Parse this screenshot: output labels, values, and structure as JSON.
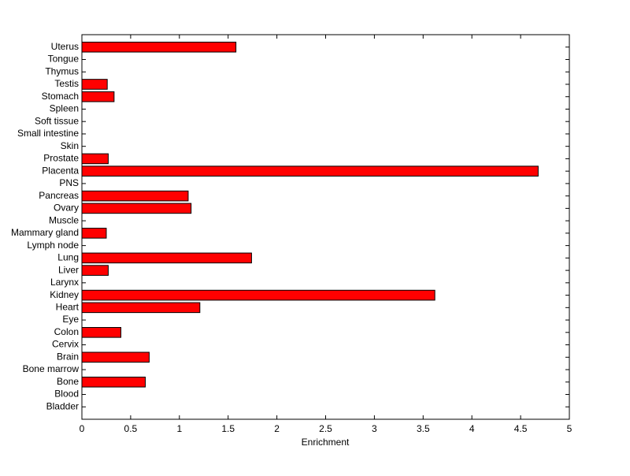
{
  "chart_data": {
    "type": "barh",
    "xlabel": "Enrichment",
    "categories": [
      "Bladder",
      "Blood",
      "Bone",
      "Bone marrow",
      "Brain",
      "Cervix",
      "Colon",
      "Eye",
      "Heart",
      "Kidney",
      "Larynx",
      "Liver",
      "Lung",
      "Lymph node",
      "Mammary gland",
      "Muscle",
      "Ovary",
      "Pancreas",
      "PNS",
      "Placenta",
      "Prostate",
      "Skin",
      "Small intestine",
      "Soft tissue",
      "Spleen",
      "Stomach",
      "Testis",
      "Thymus",
      "Tongue",
      "Uterus"
    ],
    "values": [
      0,
      0,
      0.65,
      0,
      0.69,
      0,
      0.4,
      0,
      1.21,
      3.62,
      0,
      0.27,
      1.74,
      0,
      0.25,
      0,
      1.12,
      1.09,
      0,
      4.68,
      0.27,
      0,
      0,
      0,
      0,
      0.33,
      0.26,
      0,
      0,
      1.58
    ],
    "color": "#ff0000",
    "xlim": [
      0,
      5
    ],
    "xticks": [
      0,
      0.5,
      1,
      1.5,
      2,
      2.5,
      3,
      3.5,
      4,
      4.5,
      5
    ]
  }
}
